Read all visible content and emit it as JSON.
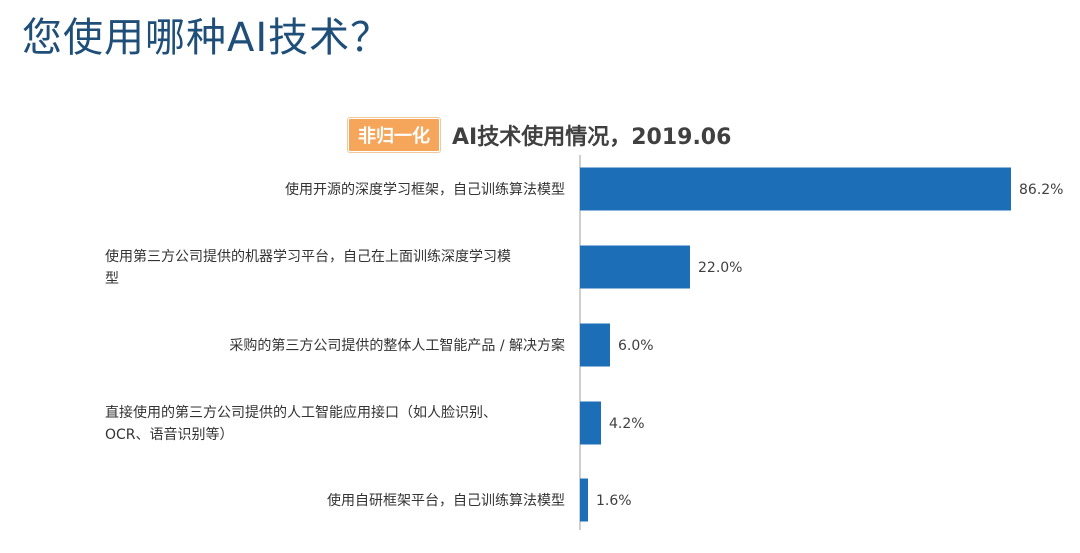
{
  "page": {
    "title": "您使用哪种AI技术？"
  },
  "chart_header": {
    "tag": "非归一化",
    "title": "AI技术使用情况，2019.06"
  },
  "colors": {
    "bar": "#1c6fb7",
    "axis": "#bfbfbf",
    "title": "#1f4e79",
    "tag": "#f5a65b"
  },
  "chart_data": {
    "type": "bar",
    "orientation": "horizontal",
    "title": "AI技术使用情况，2019.06",
    "categories": [
      [
        "使用开源的深度学习框架，自己训练算法模型"
      ],
      [
        "使用第三方公司提供的机器学习平台，自己在上面训练深度学习模",
        "型"
      ],
      [
        "采购的第三方公司提供的整体人工智能产品 / 解决方案"
      ],
      [
        "直接使用的第三方公司提供的人工智能应用接口（如人脸识别、",
        "OCR、语音识别等）"
      ],
      [
        "使用自研框架平台，自己训练算法模型"
      ]
    ],
    "values": [
      86.2,
      22.0,
      6.0,
      4.2,
      1.6
    ],
    "value_labels": [
      "86.2%",
      "22.0%",
      "6.0%",
      "4.2%",
      "1.6%"
    ],
    "xlim": [
      0,
      100
    ],
    "xlabel": "",
    "ylabel": "",
    "grid": false,
    "legend": "none"
  }
}
